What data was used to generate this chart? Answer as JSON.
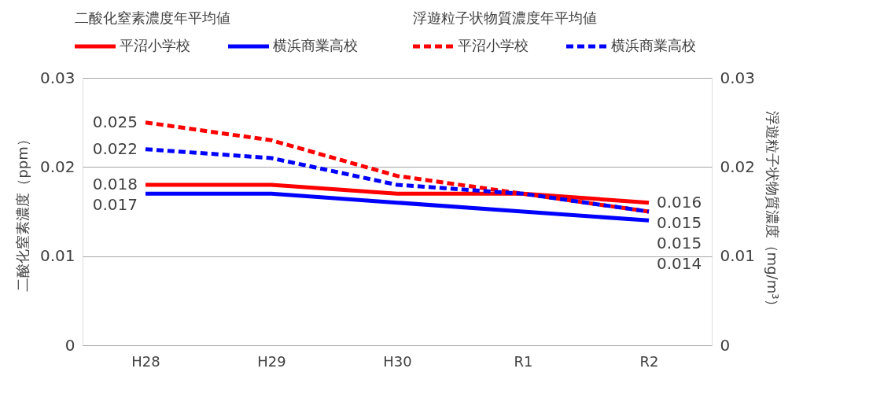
{
  "chart_data": {
    "type": "line",
    "categories": [
      "H28",
      "H29",
      "H30",
      "R1",
      "R2"
    ],
    "ylabel": "二酸化窒素濃度（ppm）",
    "y2label": "浮遊粒子状物質濃度（mg/m³）",
    "ylim": [
      0,
      0.03
    ],
    "yticks": [
      0,
      0.01,
      0.02,
      0.03
    ],
    "y2lim": [
      0,
      0.03
    ],
    "y2ticks": [
      0,
      0.01,
      0.02,
      0.03
    ],
    "annotations": [
      "二酸化窒素濃度年平均値",
      "浮遊粒子状物質濃度年平均値"
    ],
    "grid": "y",
    "legend": "top",
    "marker": "none",
    "series": [
      {
        "name": "平沼小学校",
        "color": "#ff0000",
        "line_style": "solid",
        "values": [
          0.018,
          0.018,
          0.017,
          0.017,
          0.016
        ],
        "value_labels": [
          "0.018",
          null,
          null,
          null,
          "0.016"
        ]
      },
      {
        "name": "横浜商業高校",
        "color": "#0000ff",
        "line_style": "solid",
        "values": [
          0.017,
          0.017,
          0.016,
          0.015,
          0.014
        ],
        "value_labels": [
          "0.017",
          null,
          null,
          null,
          "0.014"
        ]
      },
      {
        "name": "平沼小学校",
        "color": "#ff0000",
        "line_style": "dashed",
        "axis": "y2",
        "values": [
          0.025,
          0.023,
          0.019,
          0.017,
          0.015
        ],
        "value_labels": [
          "0.025",
          null,
          null,
          null,
          "0.015"
        ]
      },
      {
        "name": "横浜商業高校",
        "color": "#0000ff",
        "line_style": "dashed",
        "axis": "y2",
        "values": [
          0.022,
          0.021,
          0.018,
          0.017,
          0.015
        ],
        "value_labels": [
          "0.022",
          null,
          null,
          null,
          "0.015"
        ]
      }
    ]
  }
}
